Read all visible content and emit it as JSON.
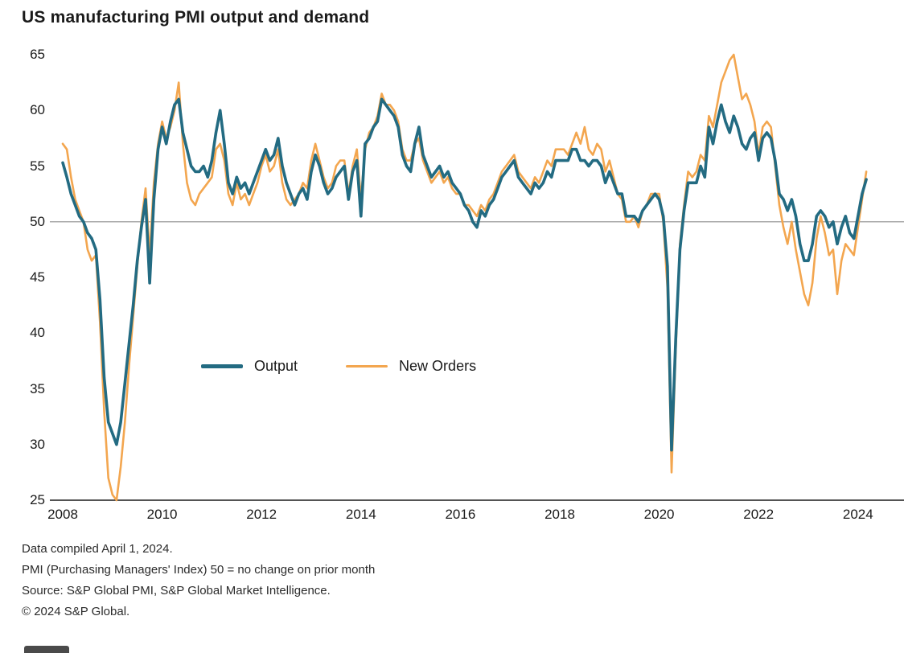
{
  "title": "US manufacturing PMI output and demand",
  "footnotes": [
    "Data compiled April 1, 2024.",
    "PMI (Purchasing Managers' Index) 50 = no change on prior month",
    "Source: S&P Global PMI, S&P Global Market Intelligence.",
    "© 2024 S&P Global."
  ],
  "colors": {
    "output": "#236b82",
    "new_orders": "#f3a64f",
    "reference_line": "#a8a8a8",
    "axis_line": "#1a1a1a",
    "text": "#1a1a1a"
  },
  "chart_data": {
    "type": "line",
    "title": "US manufacturing PMI output and demand",
    "xlabel": "",
    "ylabel": "",
    "x_frequency": "monthly",
    "x_start": "2008-01",
    "x_end": "2024-03",
    "ylim": [
      25,
      65
    ],
    "y_ticks": [
      25,
      30,
      35,
      40,
      45,
      50,
      55,
      60,
      65
    ],
    "x_ticks": [
      2008,
      2010,
      2012,
      2014,
      2016,
      2018,
      2020,
      2022,
      2024
    ],
    "reference_line": 50,
    "grid": "reference line at 50 only",
    "legend_position": "inside center-left",
    "series": [
      {
        "name": "Output",
        "color": "#236b82",
        "values": [
          55.3,
          54.0,
          52.5,
          51.5,
          50.5,
          50.0,
          49.0,
          48.5,
          47.5,
          43.0,
          36.0,
          32.0,
          31.0,
          30.0,
          32.0,
          35.5,
          39.0,
          42.5,
          46.5,
          49.5,
          52.0,
          44.5,
          52.0,
          56.5,
          58.5,
          57.0,
          59.0,
          60.5,
          61.0,
          58.0,
          56.5,
          55.0,
          54.5,
          54.5,
          55.0,
          54.0,
          55.5,
          58.0,
          60.0,
          57.0,
          53.5,
          52.5,
          54.0,
          53.0,
          53.5,
          52.5,
          53.5,
          54.5,
          55.5,
          56.5,
          55.5,
          56.0,
          57.5,
          55.0,
          53.5,
          52.5,
          51.5,
          52.5,
          53.0,
          52.0,
          54.5,
          56.0,
          55.0,
          53.5,
          52.5,
          53.0,
          54.0,
          54.5,
          55.0,
          52.0,
          54.5,
          55.5,
          50.5,
          57.0,
          57.5,
          58.5,
          59.0,
          61.0,
          60.5,
          60.0,
          59.5,
          58.5,
          56.0,
          55.0,
          54.5,
          57.0,
          58.5,
          56.0,
          55.0,
          54.0,
          54.5,
          55.0,
          54.0,
          54.5,
          53.5,
          53.0,
          52.5,
          51.5,
          51.0,
          50.0,
          49.5,
          51.0,
          50.5,
          51.5,
          52.0,
          53.0,
          54.0,
          54.5,
          55.0,
          55.5,
          54.0,
          53.5,
          53.0,
          52.5,
          53.5,
          53.0,
          53.5,
          54.5,
          54.0,
          55.5,
          55.5,
          55.5,
          55.5,
          56.5,
          56.5,
          55.5,
          55.5,
          55.0,
          55.5,
          55.5,
          55.0,
          53.5,
          54.5,
          53.5,
          52.5,
          52.5,
          50.5,
          50.5,
          50.5,
          50.0,
          51.0,
          51.5,
          52.0,
          52.5,
          52.0,
          50.5,
          46.0,
          29.5,
          39.5,
          47.5,
          51.0,
          53.5,
          53.5,
          53.5,
          55.0,
          54.0,
          58.5,
          57.0,
          59.0,
          60.5,
          59.0,
          58.0,
          59.5,
          58.5,
          57.0,
          56.5,
          57.5,
          58.0,
          55.5,
          57.5,
          58.0,
          57.5,
          55.5,
          52.5,
          52.0,
          51.0,
          52.0,
          50.5,
          48.0,
          46.5,
          46.5,
          48.0,
          50.5,
          51.0,
          50.5,
          49.5,
          50.0,
          48.0,
          49.5,
          50.5,
          49.0,
          48.5,
          50.5,
          52.5,
          53.8
        ]
      },
      {
        "name": "New Orders",
        "color": "#f3a64f",
        "values": [
          57.0,
          56.5,
          54.0,
          52.0,
          51.0,
          50.0,
          47.5,
          46.5,
          47.0,
          41.0,
          33.0,
          27.0,
          25.5,
          25.0,
          28.0,
          32.0,
          37.0,
          41.5,
          46.0,
          50.0,
          53.0,
          47.0,
          53.5,
          57.0,
          59.0,
          57.5,
          58.5,
          60.0,
          62.5,
          57.0,
          53.5,
          52.0,
          51.5,
          52.5,
          53.0,
          53.5,
          54.0,
          56.5,
          57.0,
          55.5,
          52.5,
          51.5,
          53.5,
          52.0,
          52.5,
          51.5,
          52.5,
          53.5,
          55.0,
          56.0,
          54.5,
          55.0,
          56.5,
          53.5,
          52.0,
          51.5,
          52.0,
          52.5,
          53.5,
          53.0,
          55.5,
          57.0,
          55.5,
          54.0,
          53.0,
          53.5,
          55.0,
          55.5,
          55.5,
          52.5,
          55.0,
          56.5,
          52.0,
          56.5,
          58.0,
          58.5,
          59.5,
          61.5,
          60.5,
          60.5,
          60.0,
          59.0,
          56.5,
          55.5,
          55.5,
          57.0,
          57.5,
          55.5,
          54.5,
          53.5,
          54.0,
          54.5,
          53.5,
          54.0,
          53.0,
          52.5,
          52.5,
          51.5,
          51.5,
          51.0,
          50.5,
          51.5,
          51.0,
          52.0,
          52.5,
          53.5,
          54.5,
          55.0,
          55.5,
          56.0,
          54.5,
          54.0,
          53.5,
          53.0,
          54.0,
          53.5,
          54.5,
          55.5,
          55.0,
          56.5,
          56.5,
          56.5,
          56.0,
          57.0,
          58.0,
          57.0,
          58.5,
          56.5,
          56.0,
          57.0,
          56.5,
          54.5,
          55.5,
          54.0,
          52.5,
          52.0,
          50.0,
          50.0,
          50.5,
          49.5,
          51.0,
          51.5,
          52.5,
          52.5,
          52.5,
          50.0,
          44.0,
          27.5,
          38.5,
          48.0,
          51.5,
          54.5,
          54.0,
          54.5,
          56.0,
          55.5,
          59.5,
          58.5,
          60.5,
          62.5,
          63.5,
          64.5,
          65.0,
          63.0,
          61.0,
          61.5,
          60.5,
          59.0,
          56.0,
          58.5,
          59.0,
          58.5,
          55.0,
          51.5,
          49.5,
          48.0,
          50.0,
          47.5,
          45.5,
          43.5,
          42.5,
          44.5,
          48.5,
          50.5,
          49.0,
          47.0,
          47.5,
          43.5,
          46.5,
          48.0,
          47.5,
          47.0,
          49.5,
          52.0,
          54.5
        ]
      }
    ]
  }
}
